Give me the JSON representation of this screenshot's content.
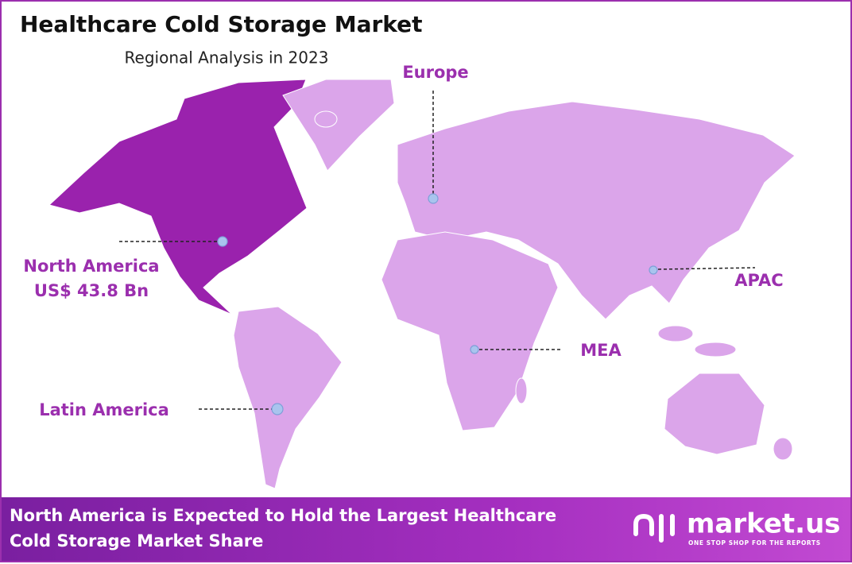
{
  "header": {
    "title": "Healthcare Cold Storage Market",
    "subtitle": "Regional Analysis in 2023"
  },
  "regions": [
    {
      "label": "Europe"
    },
    {
      "label": "North America",
      "value": "US$ 43.8 Bn"
    },
    {
      "label": "APAC"
    },
    {
      "label": "MEA"
    },
    {
      "label": "Latin America"
    }
  ],
  "footer": {
    "headline_lines": [
      "North America is Expected to Hold the Largest Healthcare",
      "Cold Storage Market Share"
    ],
    "brand": "market.us",
    "tagline": "ONE STOP SHOP FOR THE REPORTS"
  }
}
